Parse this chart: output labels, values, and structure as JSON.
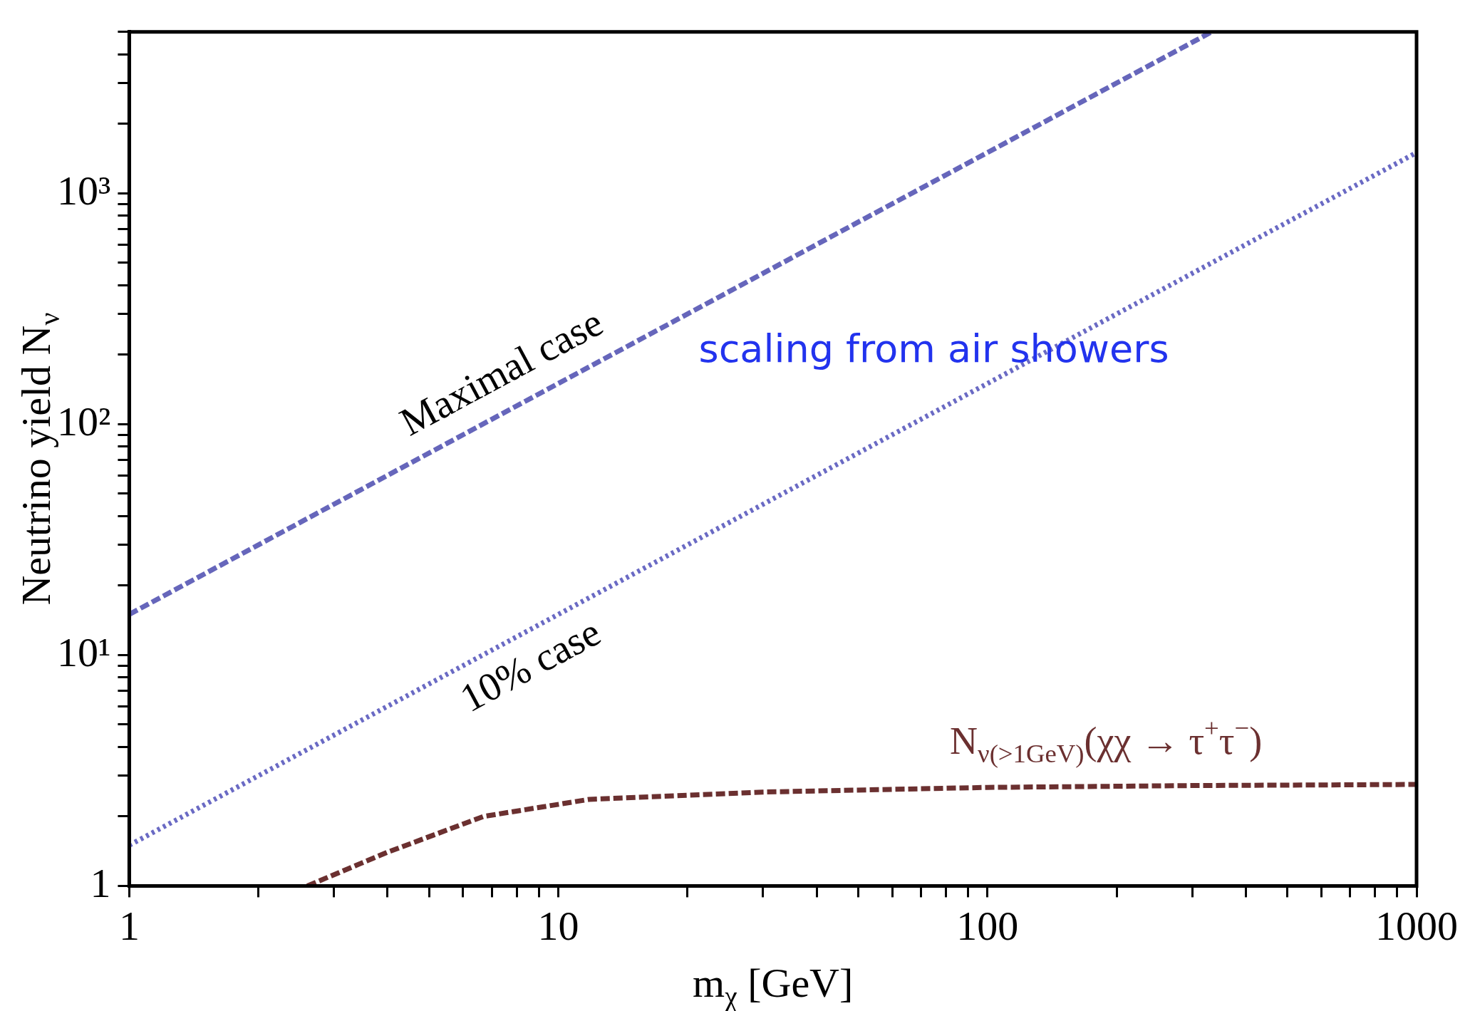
{
  "chart_data": {
    "type": "line",
    "xlabel": "m$_{χ}$ [GeV]",
    "ylabel": "Neutrino yield N$_{ν}$",
    "log": "xy",
    "legend": false,
    "xlim": [
      1,
      1000
    ],
    "ylim": [
      1,
      5000
    ],
    "xticks": [
      1,
      {
        "value": 2,
        "label": null
      },
      {
        "value": 3,
        "label": null
      },
      {
        "value": 4,
        "label": null
      },
      {
        "value": 5,
        "label": null
      },
      {
        "value": 6,
        "label": null
      },
      {
        "value": 7,
        "label": null
      },
      {
        "value": 8,
        "label": null
      },
      {
        "value": 9,
        "label": null
      },
      10,
      {
        "value": 20,
        "label": null
      },
      {
        "value": 30,
        "label": null
      },
      {
        "value": 40,
        "label": null
      },
      {
        "value": 50,
        "label": null
      },
      {
        "value": 60,
        "label": null
      },
      {
        "value": 70,
        "label": null
      },
      {
        "value": 80,
        "label": null
      },
      {
        "value": 90,
        "label": null
      },
      100,
      {
        "value": 200,
        "label": null
      },
      {
        "value": 300,
        "label": null
      },
      {
        "value": 400,
        "label": null
      },
      {
        "value": 500,
        "label": null
      },
      {
        "value": 600,
        "label": null
      },
      {
        "value": 700,
        "label": null
      },
      {
        "value": 800,
        "label": null
      },
      {
        "value": 900,
        "label": null
      },
      1000
    ],
    "yticks": [
      1,
      {
        "value": 2,
        "label": null
      },
      {
        "value": 3,
        "label": null
      },
      {
        "value": 4,
        "label": null
      },
      {
        "value": 5,
        "label": null
      },
      {
        "value": 6,
        "label": null
      },
      {
        "value": 7,
        "label": null
      },
      {
        "value": 8,
        "label": null
      },
      {
        "value": 9,
        "label": null
      },
      {
        "value": 10,
        "label": "10¹"
      },
      {
        "value": 20,
        "label": null
      },
      {
        "value": 30,
        "label": null
      },
      {
        "value": 40,
        "label": null
      },
      {
        "value": 50,
        "label": null
      },
      {
        "value": 60,
        "label": null
      },
      {
        "value": 70,
        "label": null
      },
      {
        "value": 80,
        "label": null
      },
      {
        "value": 90,
        "label": null
      },
      {
        "value": 100,
        "label": "10²"
      },
      {
        "value": 200,
        "label": null
      },
      {
        "value": 300,
        "label": null
      },
      {
        "value": 400,
        "label": null
      },
      {
        "value": 500,
        "label": null
      },
      {
        "value": 600,
        "label": null
      },
      {
        "value": 700,
        "label": null
      },
      {
        "value": 800,
        "label": null
      },
      {
        "value": 900,
        "label": null
      },
      {
        "value": 1000,
        "label": "10³"
      },
      {
        "value": 2000,
        "label": null
      },
      {
        "value": 3000,
        "label": null
      },
      {
        "value": 4000,
        "label": null
      },
      {
        "value": 5000,
        "label": null
      }
    ],
    "series": [
      {
        "name": "Maximal case",
        "color": "#6666bb",
        "line_style": "dashed",
        "x": [
          1,
          333
        ],
        "values": [
          15,
          5000
        ]
      },
      {
        "name": "10% case",
        "color": "#6a6ac4",
        "line_style": "dotted",
        "x": [
          1,
          1000
        ],
        "values": [
          1.5,
          1500
        ]
      },
      {
        "name": "N$_{ν(>1GeV)}$(χχ → τ$^{+}$τ$^{−}$)",
        "color": "#6b3030",
        "line_style": "dashed",
        "x": [
          2.6,
          4,
          6.7,
          11.8,
          30,
          100,
          300,
          1000
        ],
        "values": [
          1,
          1.4,
          2,
          2.37,
          2.55,
          2.67,
          2.72,
          2.75
        ]
      }
    ],
    "annotations": [
      "scaling from air showers"
    ]
  }
}
